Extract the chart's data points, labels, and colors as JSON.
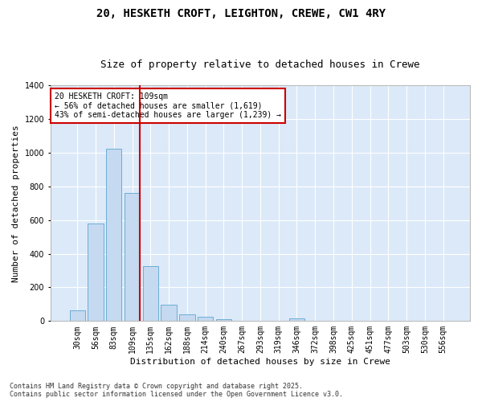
{
  "title1": "20, HESKETH CROFT, LEIGHTON, CREWE, CW1 4RY",
  "title2": "Size of property relative to detached houses in Crewe",
  "xlabel": "Distribution of detached houses by size in Crewe",
  "ylabel": "Number of detached properties",
  "categories": [
    "30sqm",
    "56sqm",
    "83sqm",
    "109sqm",
    "135sqm",
    "162sqm",
    "188sqm",
    "214sqm",
    "240sqm",
    "267sqm",
    "293sqm",
    "319sqm",
    "346sqm",
    "372sqm",
    "398sqm",
    "425sqm",
    "451sqm",
    "477sqm",
    "503sqm",
    "530sqm",
    "556sqm"
  ],
  "values": [
    65,
    580,
    1025,
    760,
    325,
    95,
    38,
    25,
    13,
    0,
    0,
    0,
    18,
    0,
    0,
    0,
    0,
    0,
    0,
    0,
    0
  ],
  "bar_color": "#c5d9f0",
  "bar_edge_color": "#6baed6",
  "red_line_color": "#cc0000",
  "annotation_text": "20 HESKETH CROFT: 109sqm\n← 56% of detached houses are smaller (1,619)\n43% of semi-detached houses are larger (1,239) →",
  "annotation_box_color": "#ffffff",
  "annotation_box_edge": "#cc0000",
  "ylim": [
    0,
    1400
  ],
  "yticks": [
    0,
    200,
    400,
    600,
    800,
    1000,
    1200,
    1400
  ],
  "bg_color": "#dce9f8",
  "grid_color": "#ffffff",
  "footer1": "Contains HM Land Registry data © Crown copyright and database right 2025.",
  "footer2": "Contains public sector information licensed under the Open Government Licence v3.0.",
  "title1_fontsize": 10,
  "title2_fontsize": 9,
  "axis_label_fontsize": 8,
  "tick_fontsize": 7,
  "footer_fontsize": 6
}
